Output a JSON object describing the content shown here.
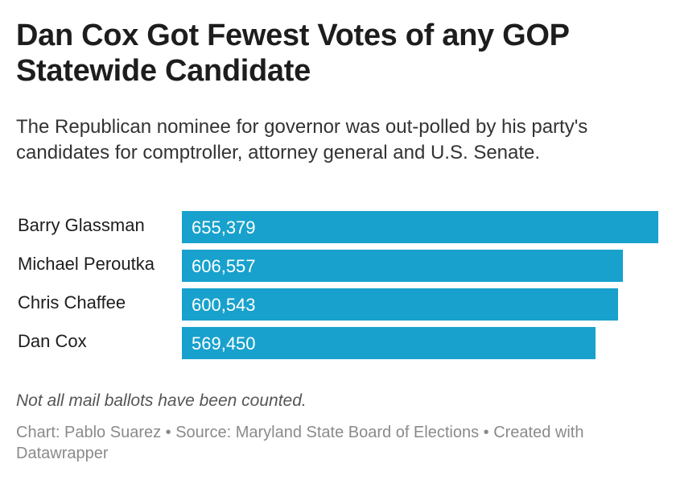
{
  "header": {
    "title": "Dan Cox Got Fewest Votes of any GOP Statewide Candidate",
    "subtitle": "The Republican nominee for governor was out-polled by his party's candidates for comptroller, attorney general and U.S. Senate."
  },
  "chart_data": {
    "type": "bar",
    "orientation": "horizontal",
    "categories": [
      "Barry Glassman",
      "Michael Peroutka",
      "Chris Chaffee",
      "Dan Cox"
    ],
    "values": [
      655379,
      606557,
      600543,
      569450
    ],
    "value_labels": [
      "655,379",
      "606,557",
      "600,543",
      "569,450"
    ],
    "bar_color": "#18a1cd",
    "xlim": [
      0,
      655379
    ],
    "grid": false
  },
  "footer": {
    "note": "Not all mail ballots have been counted.",
    "credit": "Chart: Pablo Suarez • Source: Maryland State Board of Elections • Created with Datawrapper"
  }
}
